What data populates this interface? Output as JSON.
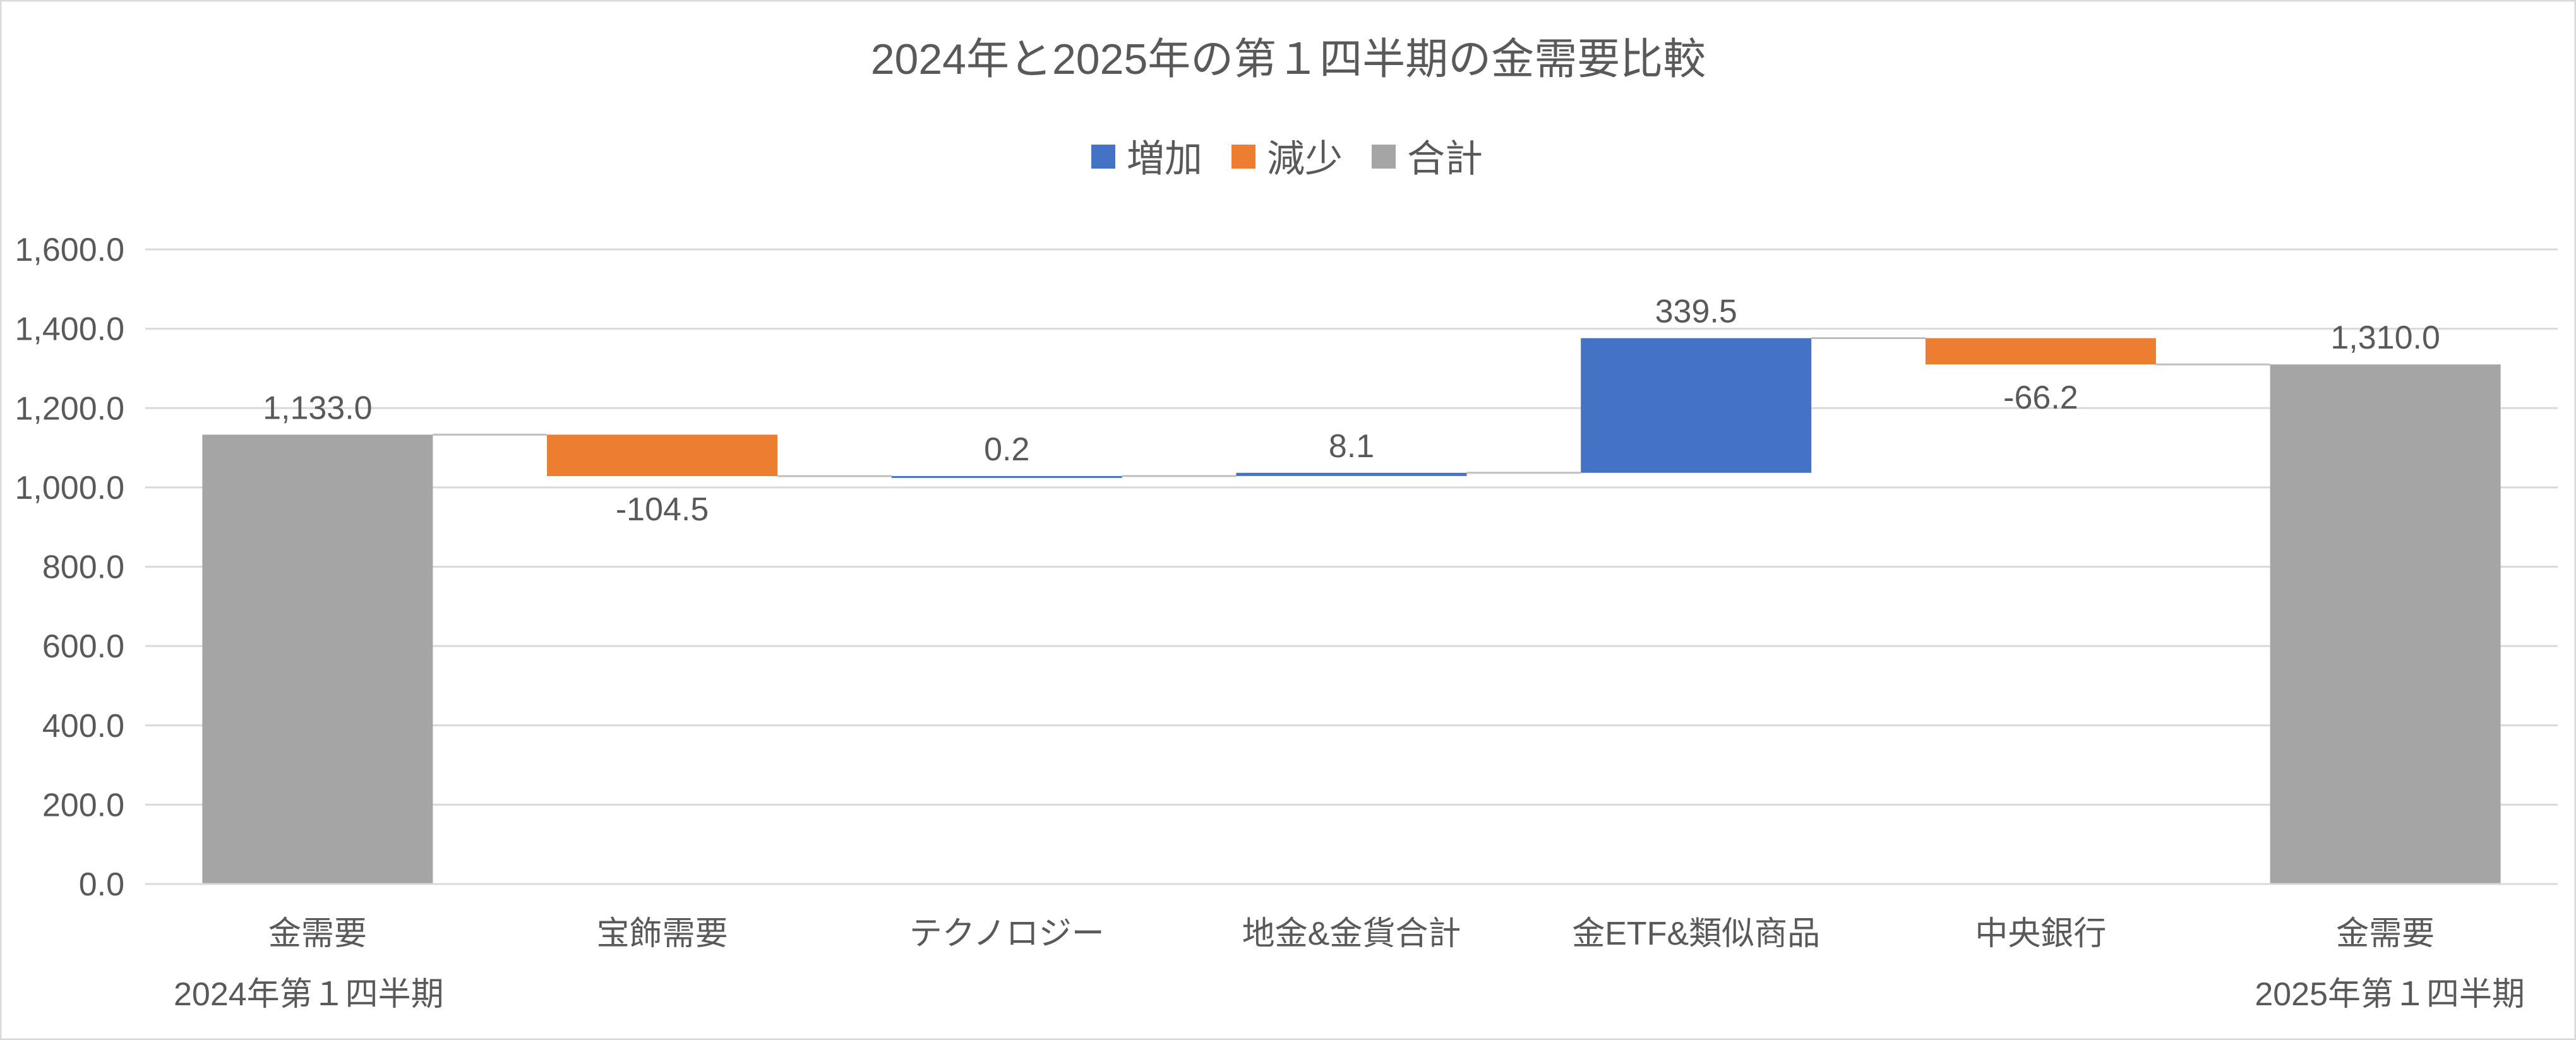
{
  "chart_data": {
    "type": "waterfall",
    "title": "2024年と2025年の第１四半期の金需要比較",
    "legend": {
      "position": "top",
      "items": [
        {
          "key": "increase",
          "label": "増加",
          "color": "#4472C4"
        },
        {
          "key": "decrease",
          "label": "減少",
          "color": "#ED7D31"
        },
        {
          "key": "total",
          "label": "合計",
          "color": "#A5A5A5"
        }
      ]
    },
    "y_axis": {
      "min": 0,
      "max": 1600,
      "step": 200,
      "tick_labels": [
        "0.0",
        "200.0",
        "400.0",
        "600.0",
        "800.0",
        "1,000.0",
        "1,200.0",
        "1,400.0",
        "1,600.0"
      ],
      "gridlines": true
    },
    "categories": [
      {
        "label": "金需要",
        "sublabel": "2024年第１四半期",
        "kind": "total",
        "value": 1133.0,
        "value_label": "1,133.0"
      },
      {
        "label": "宝飾需要",
        "sublabel": "",
        "kind": "decrease",
        "value": -104.5,
        "value_label": "-104.5"
      },
      {
        "label": "テクノロジー",
        "sublabel": "",
        "kind": "increase",
        "value": 0.2,
        "value_label": "0.2"
      },
      {
        "label": "地金&金貨合計",
        "sublabel": "",
        "kind": "increase",
        "value": 8.1,
        "value_label": "8.1"
      },
      {
        "label": "金ETF&類似商品",
        "sublabel": "",
        "kind": "increase",
        "value": 339.5,
        "value_label": "339.5"
      },
      {
        "label": "中央銀行",
        "sublabel": "",
        "kind": "decrease",
        "value": -66.2,
        "value_label": "-66.2"
      },
      {
        "label": "金需要",
        "sublabel": "2025年第１四半期",
        "kind": "total",
        "value": 1310.0,
        "value_label": "1,310.0"
      }
    ]
  }
}
